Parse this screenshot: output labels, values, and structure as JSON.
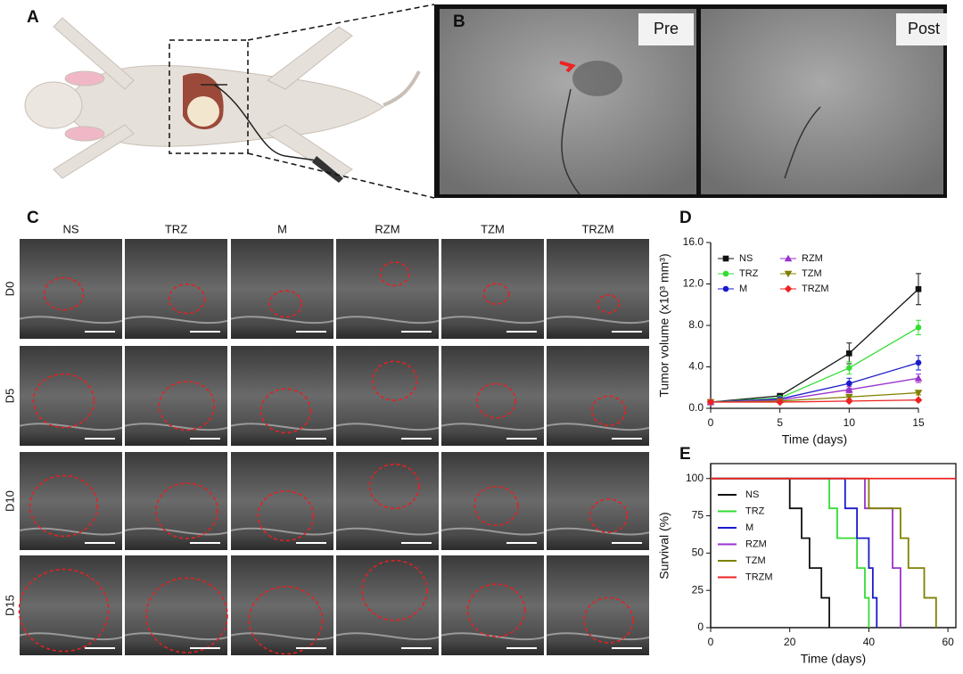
{
  "panels": {
    "A": {
      "label": "A"
    },
    "B": {
      "label": "B",
      "images": [
        "Pre",
        "Post"
      ]
    },
    "C": {
      "label": "C",
      "columns": [
        "NS",
        "TRZ",
        "M",
        "RZM",
        "TZM",
        "TRZM"
      ],
      "rows": [
        "D0",
        "D5",
        "D10",
        "D15"
      ]
    }
  },
  "chart_data": [
    {
      "type": "line",
      "label": "D",
      "x_label": "Time (days)",
      "y_label": "Tumor volume (x10³ mm³)",
      "x": [
        0,
        5,
        10,
        15
      ],
      "xlim": [
        0,
        15
      ],
      "xticks": [
        0,
        5,
        10,
        15
      ],
      "ylim": [
        0,
        16
      ],
      "yticks": [
        {
          "value": 0,
          "label": "0.0"
        },
        {
          "value": 4,
          "label": "4.0"
        },
        {
          "value": 8,
          "label": "8.0"
        },
        {
          "value": 12,
          "label": "12.0"
        },
        {
          "value": 16,
          "label": "16.0"
        }
      ],
      "series": [
        {
          "name": "NS",
          "color": "#111111",
          "marker": "square",
          "values": [
            0.6,
            1.2,
            5.3,
            11.5
          ],
          "errors": [
            0.1,
            0.2,
            1.0,
            1.5
          ]
        },
        {
          "name": "TRZ",
          "color": "#33dd33",
          "marker": "circle",
          "values": [
            0.6,
            1.0,
            3.9,
            7.8
          ],
          "errors": [
            0.1,
            0.1,
            0.6,
            0.7
          ]
        },
        {
          "name": "M",
          "color": "#1a1acc",
          "marker": "circle",
          "values": [
            0.6,
            0.9,
            2.4,
            4.4
          ],
          "errors": [
            0.1,
            0.1,
            0.5,
            0.7
          ]
        },
        {
          "name": "RZM",
          "color": "#9933cc",
          "marker": "triangle-up",
          "values": [
            0.6,
            0.8,
            1.8,
            2.9
          ],
          "errors": [
            0.1,
            0.1,
            0.3,
            0.4
          ]
        },
        {
          "name": "TZM",
          "color": "#808000",
          "marker": "triangle-down",
          "values": [
            0.6,
            0.7,
            1.1,
            1.5
          ],
          "errors": [
            0.1,
            0.1,
            0.2,
            0.2
          ]
        },
        {
          "name": "TRZM",
          "color": "#ee2222",
          "marker": "diamond",
          "values": [
            0.6,
            0.6,
            0.7,
            0.8
          ],
          "errors": [
            0.05,
            0.05,
            0.1,
            0.1
          ]
        }
      ]
    },
    {
      "type": "step",
      "label": "E",
      "x_label": "Time (days)",
      "y_label": "Survival (%)",
      "xlim": [
        0,
        62
      ],
      "xticks": [
        0,
        20,
        40,
        60
      ],
      "ylim": [
        0,
        110
      ],
      "yticks": [
        0,
        25,
        50,
        75,
        100
      ],
      "series": [
        {
          "name": "NS",
          "color": "#111111",
          "x": [
            0,
            20,
            23,
            25,
            28,
            30
          ],
          "values": [
            100,
            80,
            60,
            40,
            20,
            0
          ]
        },
        {
          "name": "TRZ",
          "color": "#33dd33",
          "x": [
            0,
            30,
            32,
            37,
            39,
            40
          ],
          "values": [
            100,
            80,
            60,
            40,
            20,
            0
          ]
        },
        {
          "name": "M",
          "color": "#1a1acc",
          "x": [
            0,
            34,
            37,
            40,
            41,
            42
          ],
          "values": [
            100,
            80,
            60,
            40,
            20,
            0
          ]
        },
        {
          "name": "RZM",
          "color": "#9933cc",
          "x": [
            0,
            39,
            46,
            48
          ],
          "values": [
            100,
            80,
            40,
            0
          ]
        },
        {
          "name": "TZM",
          "color": "#808000",
          "x": [
            0,
            40,
            48,
            50,
            54,
            57
          ],
          "values": [
            100,
            80,
            60,
            40,
            20,
            0
          ]
        },
        {
          "name": "TRZM",
          "color": "#ee2222",
          "x": [
            0,
            62
          ],
          "values": [
            100,
            100
          ]
        }
      ]
    }
  ]
}
